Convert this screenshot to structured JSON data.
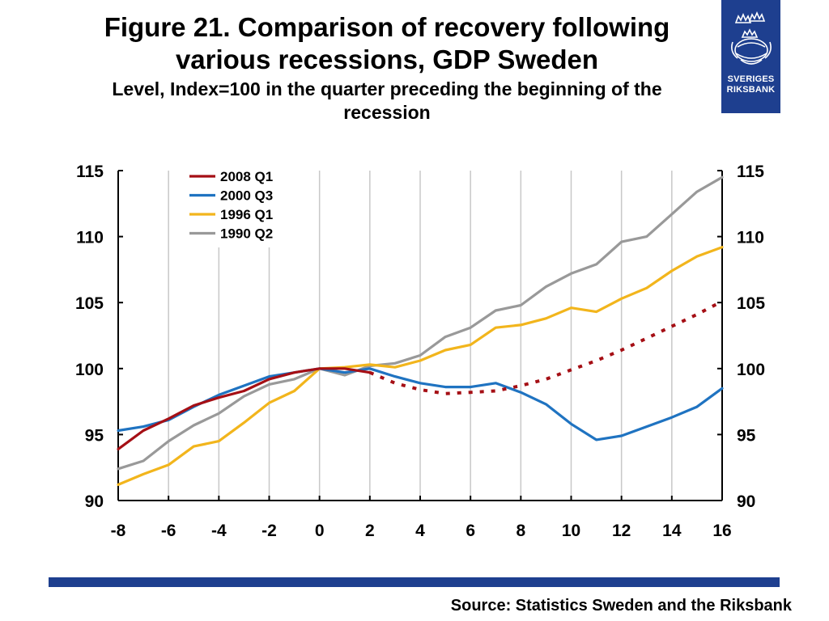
{
  "header": {
    "title_line1": "Figure 21. Comparison of recovery following",
    "title_line2": "various recessions, GDP Sweden",
    "subtitle_line1": "Level, Index=100 in the quarter preceding the beginning of the",
    "subtitle_line2": "recession"
  },
  "logo": {
    "line1": "SVERIGES",
    "line2": "RIKSBANK"
  },
  "source": "Source: Statistics Sweden and the Riksbank",
  "colors": {
    "s2008": "#a50f15",
    "s2000": "#1f73c1",
    "s1996": "#f2b51c",
    "s1990": "#999999",
    "brand": "#1e3f8f",
    "grid": "#c8c8c8"
  },
  "chart_data": {
    "type": "line",
    "title": "Figure 21. Comparison of recovery following various recessions, GDP Sweden",
    "subtitle": "Level, Index=100 in the quarter preceding the beginning of the recession",
    "xlabel": "",
    "ylabel": "",
    "xlim": [
      -8,
      16
    ],
    "ylim": [
      90,
      115
    ],
    "x_ticks": [
      -8,
      -6,
      -4,
      -2,
      0,
      2,
      4,
      6,
      8,
      10,
      12,
      14,
      16
    ],
    "x_tick_labels": [
      "-8",
      "-6",
      "-4",
      "-2",
      "0",
      "2",
      "4",
      "6",
      "8",
      "10",
      "12",
      "14",
      "16"
    ],
    "y_ticks": [
      90,
      95,
      100,
      105,
      110,
      115
    ],
    "y_tick_labels": [
      "90",
      "95",
      "100",
      "105",
      "110",
      "115"
    ],
    "grid": "vertical",
    "legend_position": "top-left",
    "secondary_y_axis": true,
    "x": [
      -8,
      -7,
      -6,
      -5,
      -4,
      -3,
      -2,
      -1,
      0,
      1,
      2,
      3,
      4,
      5,
      6,
      7,
      8,
      9,
      10,
      11,
      12,
      13,
      14,
      15,
      16
    ],
    "series": [
      {
        "name": "2008 Q1",
        "color": "#a50f15",
        "values": [
          93.9,
          95.3,
          96.2,
          97.2,
          97.8,
          98.3,
          99.2,
          99.7,
          100.0,
          100.0,
          99.7,
          null,
          null,
          null,
          null,
          null,
          null,
          null,
          null,
          null,
          null,
          null,
          null,
          null,
          null
        ]
      },
      {
        "name": "2008 Q1 (forecast)",
        "color": "#a50f15",
        "dashed": true,
        "legend": false,
        "values": [
          null,
          null,
          null,
          null,
          null,
          null,
          null,
          null,
          null,
          null,
          99.7,
          98.9,
          98.4,
          98.1,
          98.2,
          98.3,
          98.7,
          99.2,
          99.9,
          100.6,
          101.4,
          102.3,
          103.2,
          104.1,
          105.1
        ]
      },
      {
        "name": "2000 Q3",
        "color": "#1f73c1",
        "values": [
          95.3,
          95.6,
          96.1,
          97.1,
          98.0,
          98.7,
          99.4,
          99.7,
          100.0,
          99.7,
          100.0,
          99.4,
          98.9,
          98.6,
          98.6,
          98.9,
          98.2,
          97.3,
          95.8,
          94.6,
          94.9,
          95.6,
          96.3,
          97.1,
          98.5
        ]
      },
      {
        "name": "1996 Q1",
        "color": "#f2b51c",
        "values": [
          91.2,
          92.0,
          92.7,
          94.1,
          94.5,
          95.9,
          97.4,
          98.3,
          100.0,
          100.1,
          100.3,
          100.1,
          100.6,
          101.4,
          101.8,
          103.1,
          103.3,
          103.8,
          104.6,
          104.3,
          105.3,
          106.1,
          107.4,
          108.5,
          109.2
        ]
      },
      {
        "name": "1990 Q2",
        "color": "#999999",
        "values": [
          92.4,
          93.0,
          94.5,
          95.7,
          96.6,
          97.9,
          98.8,
          99.2,
          100.0,
          99.5,
          100.2,
          100.4,
          101.0,
          102.4,
          103.1,
          104.4,
          104.8,
          106.2,
          107.2,
          107.9,
          109.6,
          110.0,
          111.7,
          113.4,
          114.5
        ]
      }
    ]
  }
}
